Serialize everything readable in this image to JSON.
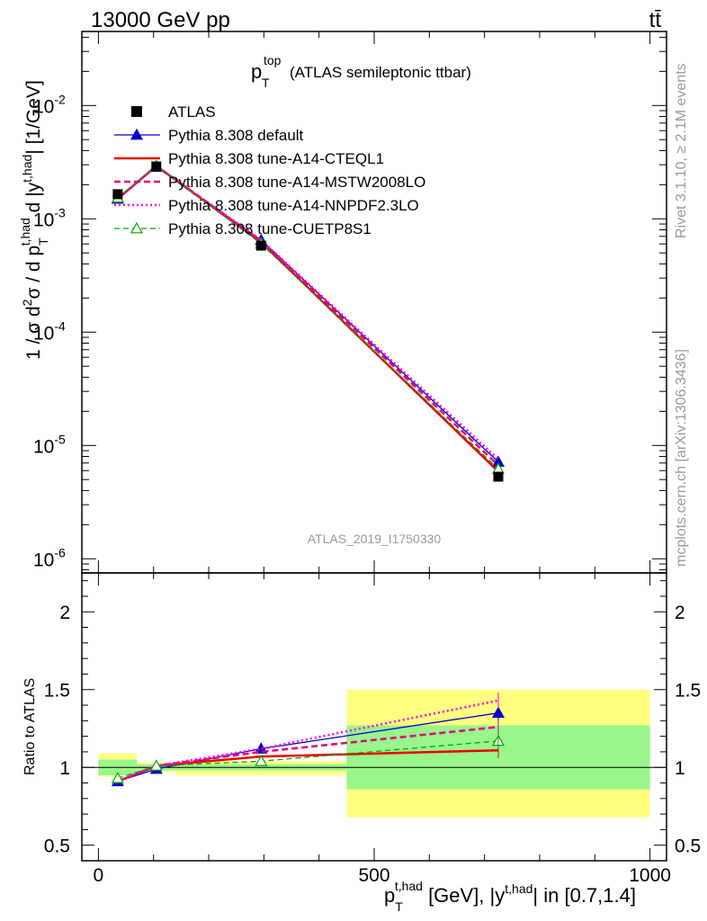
{
  "header": {
    "left": "13000 GeV pp",
    "right": "tt̄"
  },
  "title": {
    "main": "p",
    "sup": "top",
    "sub": "T",
    "rest": "(ATLAS semileptonic ttbar)"
  },
  "side_labels": {
    "rivet": "Rivet 3.1.10, ≥ 2.1M events",
    "mcplots": "mcplots.cern.ch [arXiv:1306.3436]"
  },
  "watermark": "ATLAS_2019_I1750330",
  "axes": {
    "ylabel_top": "1 / σ d²σ / d p_T^{t,had} d |y^{t,had}| [1/GeV]",
    "ylabel_bottom": "Ratio to ATLAS",
    "xlabel": "p_T^{t,had} [GeV], |y^{t,had}| in [0.7,1.4]",
    "x_ticks": [
      "0",
      "500",
      "1000"
    ],
    "y_ticks_top": [
      {
        "base": "10",
        "exp": "-2",
        "value": 0.01
      },
      {
        "base": "10",
        "exp": "-3",
        "value": 0.001
      },
      {
        "base": "10",
        "exp": "-4",
        "value": 0.0001
      },
      {
        "base": "10",
        "exp": "-5",
        "value": 1e-05
      },
      {
        "base": "10",
        "exp": "-6",
        "value": 1e-06
      }
    ],
    "y_ticks_ratio": [
      "2",
      "1.5",
      "1",
      "0.5"
    ]
  },
  "legend": [
    {
      "label": "ATLAS",
      "color": "#000000",
      "style": "data"
    },
    {
      "label": "Pythia 8.308 default",
      "color": "#0000cc",
      "style": "solid-triangle"
    },
    {
      "label": "Pythia 8.308 tune-A14-CTEQL1",
      "color": "#ee0000",
      "style": "solid-thick"
    },
    {
      "label": "Pythia 8.308 tune-A14-MSTW2008LO",
      "color": "#e0007a",
      "style": "dashed"
    },
    {
      "label": "Pythia 8.308 tune-A14-NNPDF2.3LO",
      "color": "#ff00dd",
      "style": "dotted"
    },
    {
      "label": "Pythia 8.308 tune-CUETP8S1",
      "color": "#00aa00",
      "style": "dashed-open-triangle"
    }
  ],
  "chart_data": {
    "type": "line",
    "xlim": [
      -30,
      1030
    ],
    "ylim_top": [
      7.5e-07,
      0.045
    ],
    "ylog_top": true,
    "ylim_ratio": [
      0.4,
      2.25
    ],
    "bins": [
      {
        "lo": 0,
        "hi": 70,
        "center": 35
      },
      {
        "lo": 70,
        "hi": 140,
        "center": 105
      },
      {
        "lo": 140,
        "hi": 450,
        "center": 295
      },
      {
        "lo": 450,
        "hi": 1000,
        "center": 725
      }
    ],
    "data": {
      "name": "ATLAS",
      "values": [
        0.00165,
        0.0029,
        0.00058,
        5.3e-06
      ]
    },
    "ratio_bands": {
      "stat": [
        [
          0.95,
          1.05
        ],
        [
          0.98,
          1.02
        ],
        [
          0.98,
          1.02
        ],
        [
          0.86,
          1.27
        ]
      ],
      "total": [
        [
          0.94,
          1.09
        ],
        [
          0.97,
          1.03
        ],
        [
          0.95,
          1.04
        ],
        [
          0.68,
          1.5
        ]
      ]
    },
    "series": [
      {
        "name": "Pythia 8.308 default",
        "color": "#0000cc",
        "ratio": [
          0.91,
          0.99,
          1.12,
          1.35
        ]
      },
      {
        "name": "Pythia 8.308 tune-A14-CTEQL1",
        "color": "#ee0000",
        "ratio": [
          0.91,
          1.01,
          1.07,
          1.11
        ]
      },
      {
        "name": "Pythia 8.308 tune-A14-MSTW2008LO",
        "color": "#e0007a",
        "ratio": [
          0.91,
          1.01,
          1.1,
          1.26
        ]
      },
      {
        "name": "Pythia 8.308 tune-A14-NNPDF2.3LO",
        "color": "#ff00dd",
        "ratio": [
          0.91,
          1.01,
          1.12,
          1.43
        ]
      },
      {
        "name": "Pythia 8.308 tune-CUETP8S1",
        "color": "#00aa00",
        "ratio": [
          0.93,
          1.01,
          1.04,
          1.17
        ]
      }
    ]
  }
}
